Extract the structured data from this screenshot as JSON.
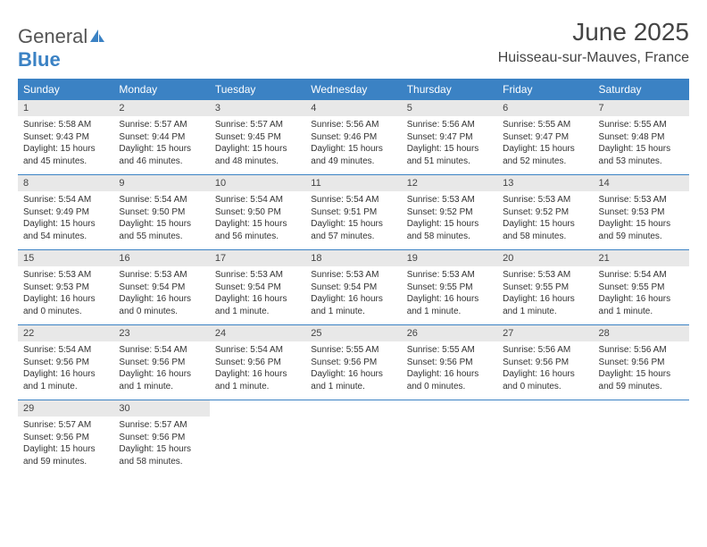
{
  "brand": {
    "part1": "General",
    "part2": "Blue"
  },
  "title": "June 2025",
  "location": "Huisseau-sur-Mauves, France",
  "colors": {
    "header_bg": "#3b82c4",
    "header_text": "#ffffff",
    "daynum_bg": "#e8e8e8",
    "text": "#333333",
    "rule": "#3b82c4"
  },
  "dayNames": [
    "Sunday",
    "Monday",
    "Tuesday",
    "Wednesday",
    "Thursday",
    "Friday",
    "Saturday"
  ],
  "weeks": [
    [
      {
        "n": "1",
        "sr": "5:58 AM",
        "ss": "9:43 PM",
        "dl": "15 hours and 45 minutes."
      },
      {
        "n": "2",
        "sr": "5:57 AM",
        "ss": "9:44 PM",
        "dl": "15 hours and 46 minutes."
      },
      {
        "n": "3",
        "sr": "5:57 AM",
        "ss": "9:45 PM",
        "dl": "15 hours and 48 minutes."
      },
      {
        "n": "4",
        "sr": "5:56 AM",
        "ss": "9:46 PM",
        "dl": "15 hours and 49 minutes."
      },
      {
        "n": "5",
        "sr": "5:56 AM",
        "ss": "9:47 PM",
        "dl": "15 hours and 51 minutes."
      },
      {
        "n": "6",
        "sr": "5:55 AM",
        "ss": "9:47 PM",
        "dl": "15 hours and 52 minutes."
      },
      {
        "n": "7",
        "sr": "5:55 AM",
        "ss": "9:48 PM",
        "dl": "15 hours and 53 minutes."
      }
    ],
    [
      {
        "n": "8",
        "sr": "5:54 AM",
        "ss": "9:49 PM",
        "dl": "15 hours and 54 minutes."
      },
      {
        "n": "9",
        "sr": "5:54 AM",
        "ss": "9:50 PM",
        "dl": "15 hours and 55 minutes."
      },
      {
        "n": "10",
        "sr": "5:54 AM",
        "ss": "9:50 PM",
        "dl": "15 hours and 56 minutes."
      },
      {
        "n": "11",
        "sr": "5:54 AM",
        "ss": "9:51 PM",
        "dl": "15 hours and 57 minutes."
      },
      {
        "n": "12",
        "sr": "5:53 AM",
        "ss": "9:52 PM",
        "dl": "15 hours and 58 minutes."
      },
      {
        "n": "13",
        "sr": "5:53 AM",
        "ss": "9:52 PM",
        "dl": "15 hours and 58 minutes."
      },
      {
        "n": "14",
        "sr": "5:53 AM",
        "ss": "9:53 PM",
        "dl": "15 hours and 59 minutes."
      }
    ],
    [
      {
        "n": "15",
        "sr": "5:53 AM",
        "ss": "9:53 PM",
        "dl": "16 hours and 0 minutes."
      },
      {
        "n": "16",
        "sr": "5:53 AM",
        "ss": "9:54 PM",
        "dl": "16 hours and 0 minutes."
      },
      {
        "n": "17",
        "sr": "5:53 AM",
        "ss": "9:54 PM",
        "dl": "16 hours and 1 minute."
      },
      {
        "n": "18",
        "sr": "5:53 AM",
        "ss": "9:54 PM",
        "dl": "16 hours and 1 minute."
      },
      {
        "n": "19",
        "sr": "5:53 AM",
        "ss": "9:55 PM",
        "dl": "16 hours and 1 minute."
      },
      {
        "n": "20",
        "sr": "5:53 AM",
        "ss": "9:55 PM",
        "dl": "16 hours and 1 minute."
      },
      {
        "n": "21",
        "sr": "5:54 AM",
        "ss": "9:55 PM",
        "dl": "16 hours and 1 minute."
      }
    ],
    [
      {
        "n": "22",
        "sr": "5:54 AM",
        "ss": "9:56 PM",
        "dl": "16 hours and 1 minute."
      },
      {
        "n": "23",
        "sr": "5:54 AM",
        "ss": "9:56 PM",
        "dl": "16 hours and 1 minute."
      },
      {
        "n": "24",
        "sr": "5:54 AM",
        "ss": "9:56 PM",
        "dl": "16 hours and 1 minute."
      },
      {
        "n": "25",
        "sr": "5:55 AM",
        "ss": "9:56 PM",
        "dl": "16 hours and 1 minute."
      },
      {
        "n": "26",
        "sr": "5:55 AM",
        "ss": "9:56 PM",
        "dl": "16 hours and 0 minutes."
      },
      {
        "n": "27",
        "sr": "5:56 AM",
        "ss": "9:56 PM",
        "dl": "16 hours and 0 minutes."
      },
      {
        "n": "28",
        "sr": "5:56 AM",
        "ss": "9:56 PM",
        "dl": "15 hours and 59 minutes."
      }
    ],
    [
      {
        "n": "29",
        "sr": "5:57 AM",
        "ss": "9:56 PM",
        "dl": "15 hours and 59 minutes."
      },
      {
        "n": "30",
        "sr": "5:57 AM",
        "ss": "9:56 PM",
        "dl": "15 hours and 58 minutes."
      },
      null,
      null,
      null,
      null,
      null
    ]
  ],
  "labels": {
    "sunrise": "Sunrise:",
    "sunset": "Sunset:",
    "daylight": "Daylight:"
  }
}
